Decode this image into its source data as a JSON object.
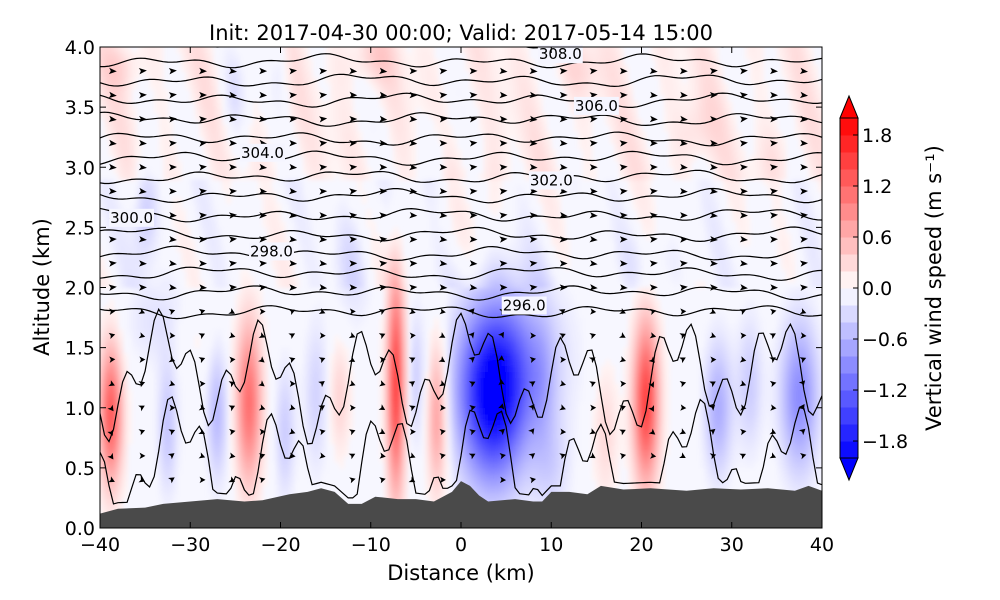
{
  "chart_data": {
    "type": "contourf",
    "title": "Init: 2017-04-30 00:00; Valid: 2017-05-14 15:00",
    "xlabel": "Distance (km)",
    "ylabel": "Altitude (km)",
    "xlim": [
      -40,
      40
    ],
    "ylim": [
      0.0,
      4.0
    ],
    "x_ticks": [
      -40,
      -30,
      -20,
      -10,
      0,
      10,
      20,
      30,
      40
    ],
    "x_tick_labels": [
      "−40",
      "−30",
      "−20",
      "−10",
      "0",
      "10",
      "20",
      "30",
      "40"
    ],
    "y_ticks": [
      0.0,
      0.5,
      1.0,
      1.5,
      2.0,
      2.5,
      3.0,
      3.5,
      4.0
    ],
    "y_tick_labels": [
      "0.0",
      "0.5",
      "1.0",
      "1.5",
      "2.0",
      "2.5",
      "3.0",
      "3.5",
      "4.0"
    ],
    "colorbar": {
      "label": "Vertical wind speed (m s⁻¹)",
      "range": [
        -2.0,
        2.0
      ],
      "ticks": [
        1.8,
        1.2,
        0.6,
        0.0,
        -0.6,
        -1.2,
        -1.8
      ],
      "tick_labels": [
        "1.8",
        "1.2",
        "0.6",
        "0.0",
        "−0.6",
        "−1.2",
        "−1.8"
      ],
      "colormap": "bwr",
      "extend": "both"
    },
    "terrain": {
      "color": "#4a4a4a",
      "points": [
        [
          -40,
          0.12
        ],
        [
          -38,
          0.16
        ],
        [
          -35,
          0.17
        ],
        [
          -33,
          0.2
        ],
        [
          -30,
          0.22
        ],
        [
          -27,
          0.24
        ],
        [
          -24,
          0.22
        ],
        [
          -22,
          0.23
        ],
        [
          -19,
          0.28
        ],
        [
          -17,
          0.3
        ],
        [
          -15.5,
          0.33
        ],
        [
          -14,
          0.3
        ],
        [
          -12.5,
          0.2
        ],
        [
          -11,
          0.2
        ],
        [
          -9.5,
          0.26
        ],
        [
          -7,
          0.24
        ],
        [
          -5,
          0.24
        ],
        [
          -3,
          0.22
        ],
        [
          -1,
          0.3
        ],
        [
          0,
          0.39
        ],
        [
          1,
          0.35
        ],
        [
          2,
          0.27
        ],
        [
          3,
          0.22
        ],
        [
          6,
          0.24
        ],
        [
          8,
          0.22
        ],
        [
          9,
          0.22
        ],
        [
          10,
          0.3
        ],
        [
          12,
          0.3
        ],
        [
          14,
          0.28
        ],
        [
          15.5,
          0.35
        ],
        [
          18,
          0.32
        ],
        [
          21,
          0.33
        ],
        [
          25,
          0.31
        ],
        [
          28,
          0.33
        ],
        [
          31,
          0.32
        ],
        [
          34,
          0.33
        ],
        [
          37,
          0.31
        ],
        [
          38.5,
          0.35
        ],
        [
          40,
          0.31
        ]
      ]
    },
    "theta_contours": {
      "interval": 1.0,
      "levels": [
        293,
        294,
        295,
        296,
        297,
        298,
        299,
        300,
        301,
        302,
        303,
        304,
        305,
        306,
        307,
        308,
        309
      ],
      "labels": [
        {
          "text": "308.0",
          "x": 11,
          "y": 3.94
        },
        {
          "text": "306.0",
          "x": 15,
          "y": 3.51
        },
        {
          "text": "304.0",
          "x": -22,
          "y": 3.12
        },
        {
          "text": "302.0",
          "x": 10,
          "y": 2.89
        },
        {
          "text": "300.0",
          "x": -36.5,
          "y": 2.58
        },
        {
          "text": "298.0",
          "x": -21,
          "y": 2.3
        },
        {
          "text": "296.0",
          "x": 7,
          "y": 1.85
        }
      ]
    },
    "wind_vectors": {
      "x_spacing": 3.33,
      "y_spacing": 0.2,
      "style": "black arrowheads"
    }
  }
}
